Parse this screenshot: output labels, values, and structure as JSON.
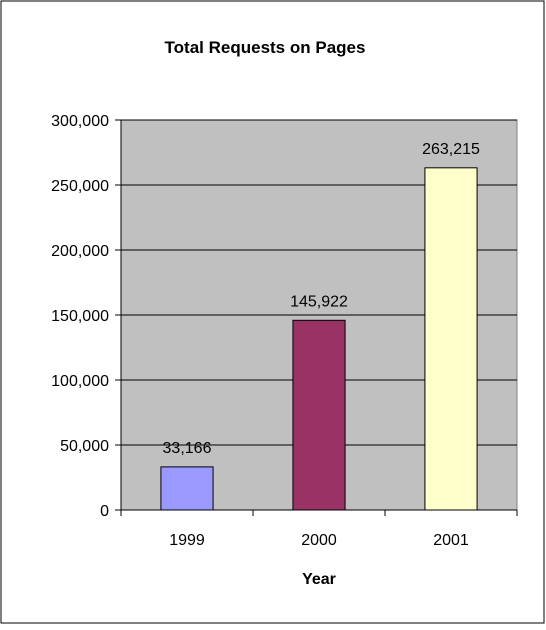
{
  "chart_data": {
    "type": "bar",
    "title": "Total Requests on Pages",
    "xlabel": "Year",
    "ylabel": "",
    "categories": [
      "1999",
      "2000",
      "2001"
    ],
    "values": [
      33166,
      145922,
      263215
    ],
    "data_labels": [
      "33,166",
      "145,922",
      "263,215"
    ],
    "bar_colors": [
      "#9999FF",
      "#993366",
      "#FFFFCC"
    ],
    "ylim": [
      0,
      300000
    ],
    "yticks": [
      0,
      50000,
      100000,
      150000,
      200000,
      250000,
      300000
    ],
    "ytick_labels": [
      "0",
      "50,000",
      "100,000",
      "150,000",
      "200,000",
      "250,000",
      "300,000"
    ],
    "grid": true,
    "plot_background": "#C0C0C0",
    "legend": "none"
  }
}
